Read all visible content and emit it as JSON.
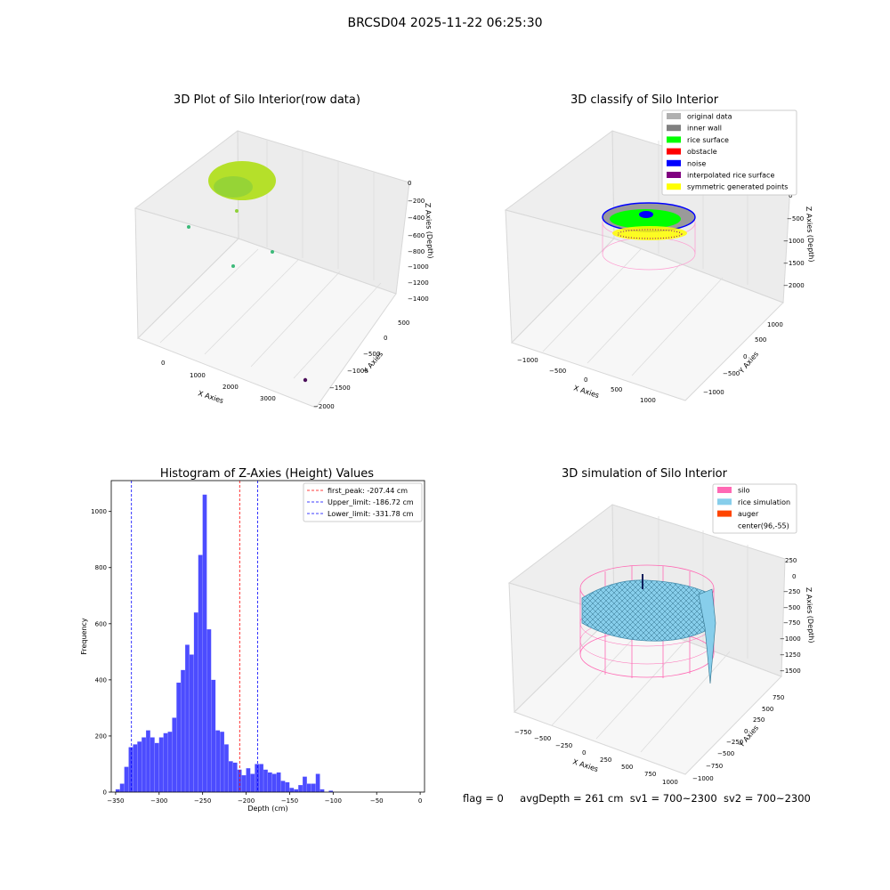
{
  "suptitle": "BRCSD04 2025-11-22 06:25:30",
  "footer": {
    "flag": "flag = 0",
    "avg": "avgDepth = 261 cm",
    "sv1": "sv1 = 700~2300",
    "sv2": "sv2 = 700~2300"
  },
  "chart_data": [
    {
      "type": "scatter",
      "title": "3D Plot of Silo Interior(row data)",
      "xlabel": "X Axies",
      "ylabel": "Y Axies",
      "zlabel": "Z Axies (Depth)",
      "x_ticks": [
        "0",
        "1000",
        "2000",
        "3000"
      ],
      "y_ticks": [
        "500",
        "0",
        "−500",
        "−1000",
        "−1500",
        "−2000"
      ],
      "z_ticks": [
        "0",
        "−200",
        "−400",
        "−600",
        "−800",
        "−1000",
        "−1200",
        "−1400"
      ],
      "colors": {
        "surface": "#b5e02a",
        "surface_dark": "#8fd13a",
        "outlier": "#3dba7a",
        "outlier_dark": "#4b0f5a"
      }
    },
    {
      "type": "scatter",
      "title": "3D classify of Silo Interior",
      "xlabel": "X Axies",
      "ylabel": "Y Axies",
      "zlabel": "Z Axies (Depth)",
      "x_ticks": [
        "−1000",
        "−500",
        "0",
        "500",
        "1000"
      ],
      "y_ticks": [
        "1000",
        "500",
        "0",
        "−500",
        "−1000"
      ],
      "z_ticks": [
        "0",
        "−500",
        "−1000",
        "−1500",
        "−2000"
      ],
      "legend": [
        {
          "label": "original data",
          "color": "#b0b0b0"
        },
        {
          "label": "inner wall",
          "color": "#808080"
        },
        {
          "label": "rice surface",
          "color": "#00ff00"
        },
        {
          "label": "obstacle",
          "color": "#ff0000"
        },
        {
          "label": "noise",
          "color": "#0000ff"
        },
        {
          "label": "interpolated rice surface",
          "color": "#800080"
        },
        {
          "label": "symmetric generated points",
          "color": "#ffff00"
        }
      ],
      "legend_position": "top-right"
    },
    {
      "type": "bar",
      "title": "Histogram of Z-Axies (Height) Values",
      "xlabel": "Depth (cm)",
      "ylabel": "Frequency",
      "bin_start": -350,
      "bin_width": 5,
      "values": [
        10,
        30,
        90,
        160,
        170,
        180,
        195,
        220,
        195,
        175,
        195,
        210,
        215,
        265,
        390,
        435,
        525,
        490,
        640,
        845,
        1060,
        580,
        400,
        220,
        215,
        170,
        110,
        105,
        80,
        60,
        85,
        65,
        100,
        100,
        80,
        70,
        65,
        70,
        40,
        35,
        15,
        10,
        25,
        55,
        30,
        30,
        65,
        10,
        0,
        5
      ],
      "xlim": [
        -355,
        5
      ],
      "ylim": [
        0,
        1110
      ],
      "x_ticks": [
        -350,
        -300,
        -250,
        -200,
        -150,
        -100,
        -50,
        0
      ],
      "y_ticks": [
        0,
        200,
        400,
        600,
        800,
        1000
      ],
      "bar_color": "#0000ff",
      "lines": [
        {
          "label": "first_peak: -207.44 cm",
          "x": -207.44,
          "color": "#ff0000"
        },
        {
          "label": "Upper_limit: -186.72 cm",
          "x": -186.72,
          "color": "#0000ff"
        },
        {
          "label": "Lower_limit: -331.78 cm",
          "x": -331.78,
          "color": "#0000ff"
        }
      ],
      "legend_position": "top-right"
    },
    {
      "type": "area",
      "title": "3D simulation of Silo Interior",
      "xlabel": "X Axies",
      "ylabel": "Y Axies",
      "zlabel": "Z Axies (Depth)",
      "x_ticks": [
        "−750",
        "−500",
        "−250",
        "0",
        "250",
        "500",
        "750",
        "1000"
      ],
      "y_ticks": [
        "750",
        "500",
        "250",
        "0",
        "−250",
        "−500",
        "−750",
        "−1000"
      ],
      "z_ticks": [
        "250",
        "0",
        "−250",
        "−500",
        "−750",
        "−1000",
        "−1250",
        "−1500"
      ],
      "legend": [
        {
          "label": "silo",
          "color": "#ff69b4"
        },
        {
          "label": "rice simulation",
          "color": "#87ceeb"
        },
        {
          "label": "auger",
          "color": "#ff4500"
        },
        {
          "label": "center(96,-55)",
          "color": "#ffffff"
        }
      ],
      "legend_position": "top-right"
    }
  ]
}
